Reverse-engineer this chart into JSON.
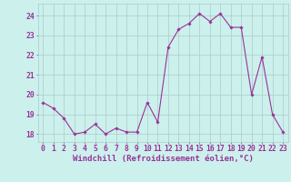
{
  "x": [
    0,
    1,
    2,
    3,
    4,
    5,
    6,
    7,
    8,
    9,
    10,
    11,
    12,
    13,
    14,
    15,
    16,
    17,
    18,
    19,
    20,
    21,
    22,
    23
  ],
  "y": [
    19.6,
    19.3,
    18.8,
    18.0,
    18.1,
    18.5,
    18.0,
    18.3,
    18.1,
    18.1,
    19.6,
    18.6,
    22.4,
    23.3,
    23.6,
    24.1,
    23.7,
    24.1,
    23.4,
    23.4,
    20.0,
    21.9,
    19.0,
    18.1
  ],
  "line_color": "#993399",
  "marker": "D",
  "marker_size": 1.8,
  "bg_color": "#ccf0ec",
  "grid_color": "#aacccc",
  "xlabel": "Windchill (Refroidissement éolien,°C)",
  "ylabel_ticks": [
    18,
    19,
    20,
    21,
    22,
    23,
    24
  ],
  "xlim": [
    -0.5,
    23.5
  ],
  "ylim": [
    17.6,
    24.6
  ],
  "xtick_labels": [
    "0",
    "1",
    "2",
    "3",
    "4",
    "5",
    "6",
    "7",
    "8",
    "9",
    "10",
    "11",
    "12",
    "13",
    "14",
    "15",
    "16",
    "17",
    "18",
    "19",
    "20",
    "21",
    "22",
    "23"
  ],
  "xlabel_color": "#993399",
  "tick_color": "#993399",
  "label_fontsize": 6.5,
  "tick_fontsize": 5.8,
  "linewidth": 0.8
}
